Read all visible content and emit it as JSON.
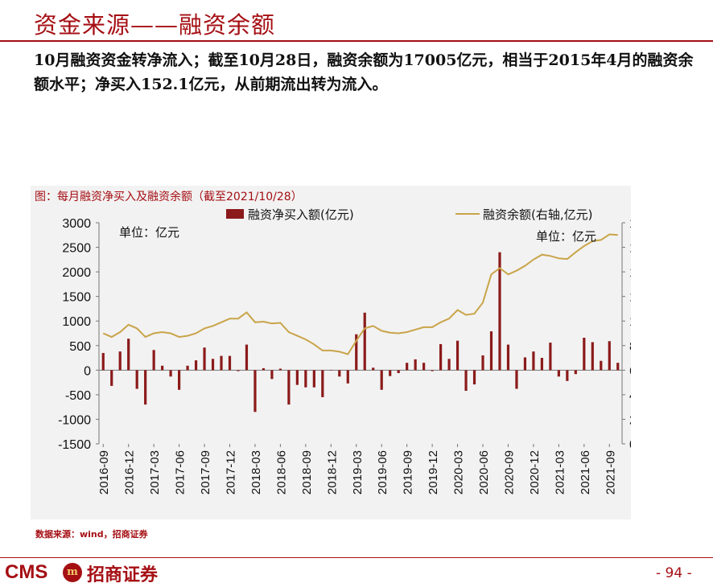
{
  "header": {
    "title": "资金来源——融资余额",
    "summary": "10月融资资金转净流入；截至10月28日，融资余额为17005亿元，相当于2015年4月的融资余额水平；净买入152.1亿元，从前期流出转为流入。"
  },
  "chart_data": {
    "type": "bar+line",
    "title": "图：每月融资净买入及融资余额（截至2021/10/28）",
    "left_unit_label": "单位：亿元",
    "right_unit_label": "单位：亿元",
    "categories": [
      "2016-09",
      "2016-10",
      "2016-11",
      "2016-12",
      "2017-01",
      "2017-02",
      "2017-03",
      "2017-04",
      "2017-05",
      "2017-06",
      "2017-07",
      "2017-08",
      "2017-09",
      "2017-10",
      "2017-11",
      "2017-12",
      "2018-01",
      "2018-02",
      "2018-03",
      "2018-04",
      "2018-05",
      "2018-06",
      "2018-07",
      "2018-08",
      "2018-09",
      "2018-10",
      "2018-11",
      "2018-12",
      "2019-01",
      "2019-02",
      "2019-03",
      "2019-04",
      "2019-05",
      "2019-06",
      "2019-07",
      "2019-08",
      "2019-09",
      "2019-10",
      "2019-11",
      "2019-12",
      "2020-01",
      "2020-02",
      "2020-03",
      "2020-04",
      "2020-05",
      "2020-06",
      "2020-07",
      "2020-08",
      "2020-09",
      "2020-10",
      "2020-11",
      "2020-12",
      "2021-01",
      "2021-02",
      "2021-03",
      "2021-04",
      "2021-05",
      "2021-06",
      "2021-07",
      "2021-08",
      "2021-09",
      "2021-10"
    ],
    "x_tick_labels": [
      "2016-09",
      "2016-12",
      "2017-03",
      "2017-06",
      "2017-09",
      "2017-12",
      "2018-03",
      "2018-06",
      "2018-09",
      "2018-12",
      "2019-03",
      "2019-06",
      "2019-09",
      "2019-12",
      "2020-03",
      "2020-06",
      "2020-09",
      "2020-12",
      "2021-03",
      "2021-06",
      "2021-09"
    ],
    "series": [
      {
        "name": "融资净买入额(亿元)",
        "type": "bar",
        "axis": "left",
        "color": "#8b1a1a",
        "values": [
          350,
          -320,
          380,
          640,
          -380,
          -700,
          410,
          90,
          -130,
          -400,
          90,
          200,
          460,
          230,
          290,
          290,
          -20,
          520,
          -850,
          40,
          -180,
          30,
          -700,
          -300,
          -350,
          -350,
          -550,
          0,
          -130,
          -270,
          730,
          1170,
          50,
          -400,
          -120,
          -60,
          150,
          220,
          150,
          -20,
          530,
          230,
          600,
          -420,
          -290,
          300,
          790,
          2400,
          520,
          -380,
          260,
          380,
          250,
          560,
          -130,
          -220,
          -80,
          660,
          570,
          190,
          590,
          150
        ]
      },
      {
        "name": "融资余额(右轴,亿元)",
        "type": "line",
        "axis": "right",
        "color": "#c9a449",
        "values": [
          9000,
          8700,
          9100,
          9700,
          9400,
          8700,
          9000,
          9100,
          9000,
          8700,
          8800,
          9000,
          9400,
          9600,
          9900,
          10200,
          10200,
          10700,
          9900,
          9950,
          9800,
          9850,
          9100,
          8800,
          8500,
          8100,
          7600,
          7600,
          7500,
          7300,
          8400,
          9400,
          9600,
          9200,
          9050,
          9000,
          9100,
          9300,
          9500,
          9500,
          9900,
          10200,
          10900,
          10500,
          10600,
          11500,
          13800,
          14300,
          13800,
          14100,
          14500,
          15000,
          15400,
          15300,
          15100,
          15050,
          15600,
          16100,
          16500,
          16600,
          17050,
          17005
        ]
      }
    ],
    "y_left": {
      "min": -1500,
      "max": 3000,
      "step": 500
    },
    "y_right": {
      "min": 0,
      "max": 18000,
      "step": 2000
    },
    "legend_position": "top"
  },
  "footer": {
    "source": "数据来源：wind，招商证券",
    "logo_text": "CMS",
    "logo_badge": "m",
    "logo_cn": "招商证券",
    "page_number": "- 94 -"
  },
  "colors": {
    "brand": "#a50f14",
    "bar": "#8b1a1a",
    "line": "#c9a449",
    "panel_bg": "#f2f2f2"
  }
}
